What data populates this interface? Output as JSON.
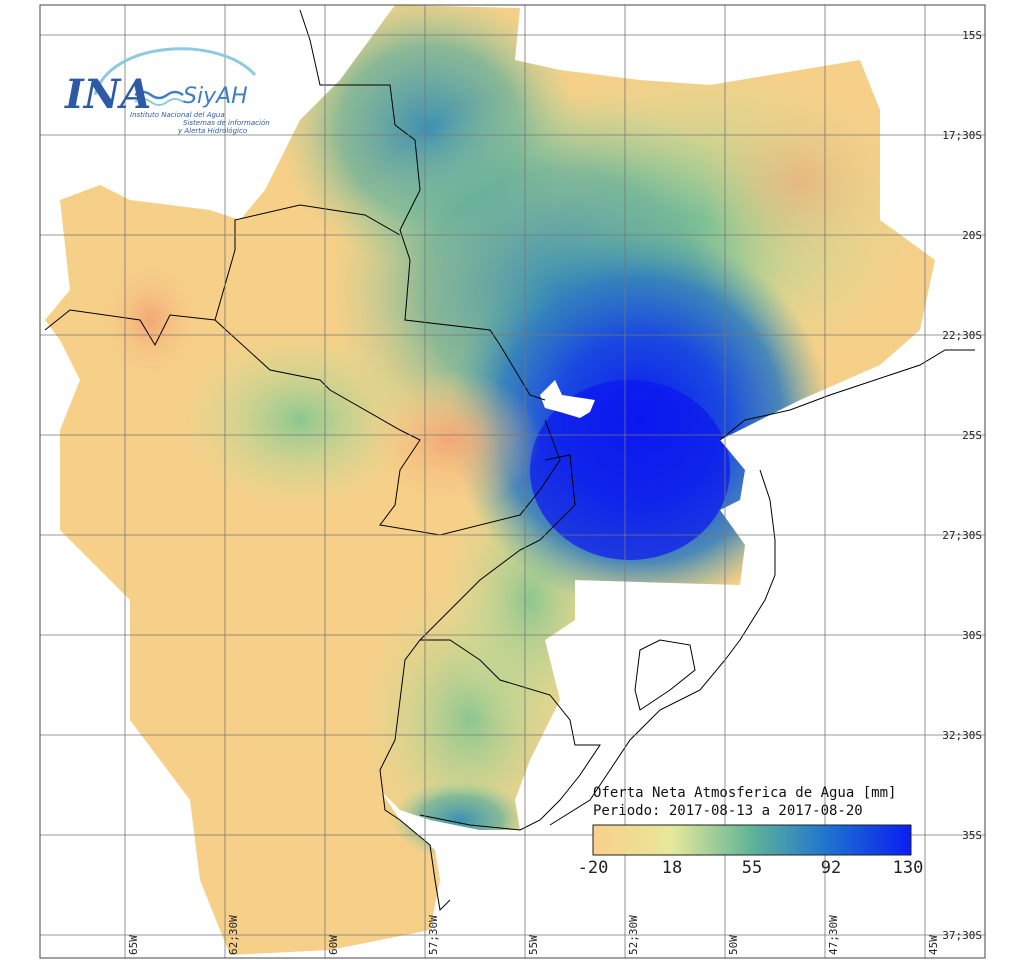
{
  "logo": {
    "brand": "INA",
    "product": "SiyAH",
    "org_line": "Instituto Nacional del Agua",
    "desc_line1": "Sistemas de información",
    "desc_line2": "y Alerta Hidrológico"
  },
  "legend": {
    "title": "Oferta Neta Atmosferica de Agua [mm]",
    "period": "Periodo: 2017-08-13 a 2017-08-20",
    "ticks": [
      "-20",
      "18",
      "55",
      "92",
      "130"
    ],
    "colors": [
      "#fbcf8a",
      "#e6e89a",
      "#5fb497",
      "#1c6fd2",
      "#0a1ef2"
    ]
  },
  "axes": {
    "lat_labels": [
      "15S",
      "17;30S",
      "20S",
      "22;30S",
      "25S",
      "27;30S",
      "30S",
      "32;30S",
      "35S",
      "37;30S"
    ],
    "lon_labels": [
      "65W",
      "62;30W",
      "60W",
      "57;30W",
      "55W",
      "52;30W",
      "50W",
      "47;30W",
      "45W"
    ]
  },
  "colors": {
    "low": "#f7cc86",
    "mid": "#d9e59a",
    "green": "#74bb91",
    "teal": "#3c8fb4",
    "blue": "#1a49e2",
    "deep": "#0b17f0"
  }
}
